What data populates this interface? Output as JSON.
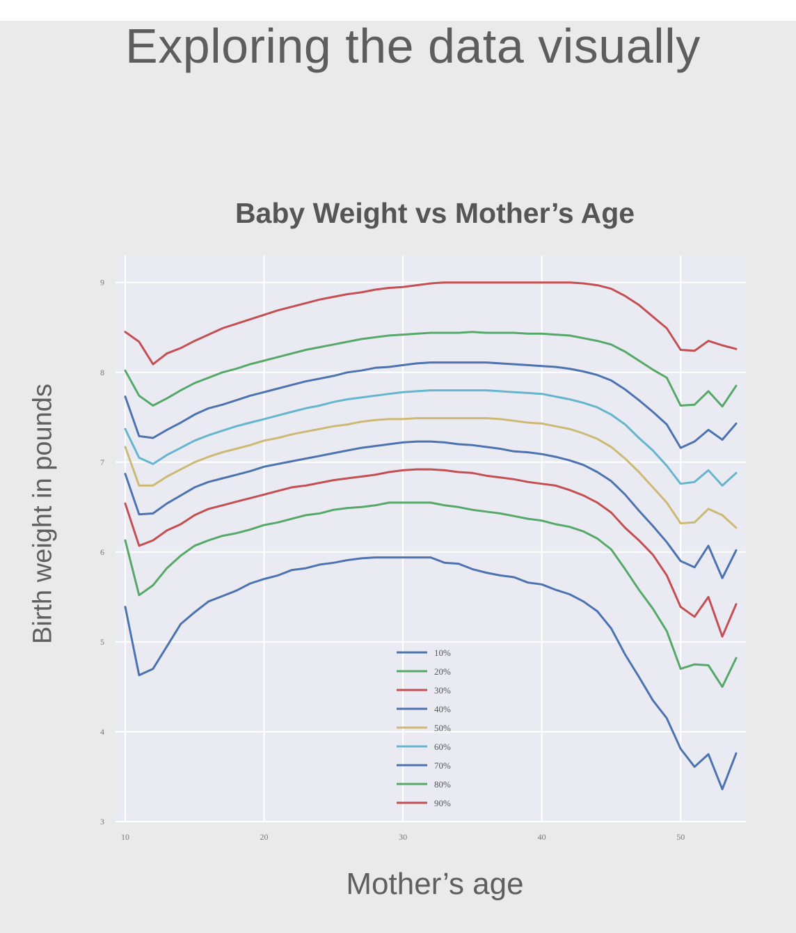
{
  "slide": {
    "title": "Exploring the data visually"
  },
  "colors": {
    "background": "#e9eae9",
    "plot_background": "#eaeaf2",
    "grid": "#ffffff",
    "tick_text": "#777777"
  },
  "chart_data": {
    "type": "line",
    "title": "Baby Weight vs Mother’s Age",
    "xlabel": "Mother’s age",
    "ylabel": "Birth weight in pounds",
    "xlim": [
      9.3,
      54.7
    ],
    "ylim": [
      3,
      9.3
    ],
    "xticks": [
      10,
      20,
      30,
      40,
      50
    ],
    "yticks": [
      3,
      4,
      5,
      6,
      7,
      8,
      9
    ],
    "grid": true,
    "legend_position": "lower-center",
    "x": [
      10,
      11,
      12,
      13,
      14,
      15,
      16,
      17,
      18,
      19,
      20,
      21,
      22,
      23,
      24,
      25,
      26,
      27,
      28,
      29,
      30,
      31,
      32,
      33,
      34,
      35,
      36,
      37,
      38,
      39,
      40,
      41,
      42,
      43,
      44,
      45,
      46,
      47,
      48,
      49,
      50,
      51,
      52,
      53,
      54
    ],
    "series": [
      {
        "name": "10%",
        "color": "#4c72b0",
        "values": [
          5.39,
          4.63,
          4.7,
          4.95,
          5.2,
          5.33,
          5.45,
          5.51,
          5.57,
          5.65,
          5.7,
          5.74,
          5.8,
          5.82,
          5.86,
          5.88,
          5.91,
          5.93,
          5.94,
          5.94,
          5.94,
          5.94,
          5.94,
          5.88,
          5.87,
          5.81,
          5.77,
          5.74,
          5.72,
          5.66,
          5.64,
          5.58,
          5.53,
          5.45,
          5.34,
          5.15,
          4.86,
          4.61,
          4.35,
          4.15,
          3.81,
          3.61,
          3.75,
          3.36,
          3.76
        ]
      },
      {
        "name": "20%",
        "color": "#55a868",
        "values": [
          6.13,
          5.52,
          5.63,
          5.82,
          5.96,
          6.07,
          6.13,
          6.18,
          6.21,
          6.25,
          6.3,
          6.33,
          6.37,
          6.41,
          6.43,
          6.47,
          6.49,
          6.5,
          6.52,
          6.55,
          6.55,
          6.55,
          6.55,
          6.52,
          6.5,
          6.47,
          6.45,
          6.43,
          6.4,
          6.37,
          6.35,
          6.31,
          6.28,
          6.23,
          6.15,
          6.03,
          5.81,
          5.58,
          5.37,
          5.12,
          4.7,
          4.75,
          4.74,
          4.5,
          4.82
        ]
      },
      {
        "name": "30%",
        "color": "#c44e52",
        "values": [
          6.54,
          6.07,
          6.13,
          6.24,
          6.31,
          6.41,
          6.48,
          6.52,
          6.56,
          6.6,
          6.64,
          6.68,
          6.72,
          6.74,
          6.77,
          6.8,
          6.82,
          6.84,
          6.86,
          6.89,
          6.91,
          6.92,
          6.92,
          6.91,
          6.89,
          6.88,
          6.85,
          6.83,
          6.81,
          6.78,
          6.76,
          6.74,
          6.69,
          6.63,
          6.55,
          6.44,
          6.27,
          6.13,
          5.97,
          5.74,
          5.39,
          5.28,
          5.5,
          5.06,
          5.42
        ]
      },
      {
        "name": "40%",
        "color": "#4c72b0",
        "values": [
          6.87,
          6.42,
          6.43,
          6.54,
          6.63,
          6.72,
          6.78,
          6.82,
          6.86,
          6.9,
          6.95,
          6.98,
          7.01,
          7.04,
          7.07,
          7.1,
          7.13,
          7.16,
          7.18,
          7.2,
          7.22,
          7.23,
          7.23,
          7.22,
          7.2,
          7.19,
          7.17,
          7.15,
          7.12,
          7.11,
          7.09,
          7.06,
          7.02,
          6.97,
          6.89,
          6.79,
          6.64,
          6.46,
          6.29,
          6.11,
          5.9,
          5.83,
          6.07,
          5.71,
          6.02
        ]
      },
      {
        "name": "50%",
        "color": "#ccb974",
        "values": [
          7.17,
          6.74,
          6.74,
          6.84,
          6.92,
          7.0,
          7.06,
          7.11,
          7.15,
          7.19,
          7.24,
          7.27,
          7.31,
          7.34,
          7.37,
          7.4,
          7.42,
          7.45,
          7.47,
          7.48,
          7.48,
          7.49,
          7.49,
          7.49,
          7.49,
          7.49,
          7.49,
          7.48,
          7.46,
          7.44,
          7.43,
          7.4,
          7.37,
          7.32,
          7.26,
          7.17,
          7.04,
          6.89,
          6.72,
          6.55,
          6.32,
          6.33,
          6.48,
          6.41,
          6.27
        ]
      },
      {
        "name": "60%",
        "color": "#64b5cd",
        "values": [
          7.37,
          7.05,
          6.98,
          7.08,
          7.16,
          7.24,
          7.3,
          7.35,
          7.4,
          7.44,
          7.48,
          7.52,
          7.56,
          7.6,
          7.63,
          7.67,
          7.7,
          7.72,
          7.74,
          7.76,
          7.78,
          7.79,
          7.8,
          7.8,
          7.8,
          7.8,
          7.8,
          7.79,
          7.78,
          7.77,
          7.76,
          7.73,
          7.7,
          7.66,
          7.61,
          7.53,
          7.42,
          7.27,
          7.13,
          6.96,
          6.76,
          6.78,
          6.91,
          6.74,
          6.88
        ]
      },
      {
        "name": "70%",
        "color": "#4c72b0",
        "values": [
          7.73,
          7.29,
          7.27,
          7.36,
          7.44,
          7.53,
          7.6,
          7.64,
          7.69,
          7.74,
          7.78,
          7.82,
          7.86,
          7.9,
          7.93,
          7.96,
          8.0,
          8.02,
          8.05,
          8.06,
          8.08,
          8.1,
          8.11,
          8.11,
          8.11,
          8.11,
          8.11,
          8.1,
          8.09,
          8.08,
          8.07,
          8.06,
          8.04,
          8.01,
          7.97,
          7.91,
          7.81,
          7.69,
          7.56,
          7.42,
          7.16,
          7.23,
          7.36,
          7.25,
          7.43
        ]
      },
      {
        "name": "80%",
        "color": "#55a868",
        "values": [
          8.02,
          7.74,
          7.63,
          7.71,
          7.8,
          7.88,
          7.94,
          8.0,
          8.04,
          8.09,
          8.13,
          8.17,
          8.21,
          8.25,
          8.28,
          8.31,
          8.34,
          8.37,
          8.39,
          8.41,
          8.42,
          8.43,
          8.44,
          8.44,
          8.44,
          8.45,
          8.44,
          8.44,
          8.44,
          8.43,
          8.43,
          8.42,
          8.41,
          8.38,
          8.35,
          8.31,
          8.23,
          8.13,
          8.03,
          7.94,
          7.63,
          7.64,
          7.79,
          7.62,
          7.85
        ]
      },
      {
        "name": "90%",
        "color": "#c44e52",
        "values": [
          8.45,
          8.34,
          8.09,
          8.21,
          8.27,
          8.35,
          8.42,
          8.49,
          8.54,
          8.59,
          8.64,
          8.69,
          8.73,
          8.77,
          8.81,
          8.84,
          8.87,
          8.89,
          8.92,
          8.94,
          8.95,
          8.97,
          8.99,
          9.0,
          9.0,
          9.0,
          9.0,
          9.0,
          9.0,
          9.0,
          9.0,
          9.0,
          9.0,
          8.99,
          8.97,
          8.93,
          8.85,
          8.75,
          8.62,
          8.49,
          8.25,
          8.24,
          8.35,
          8.3,
          8.26
        ]
      }
    ]
  }
}
